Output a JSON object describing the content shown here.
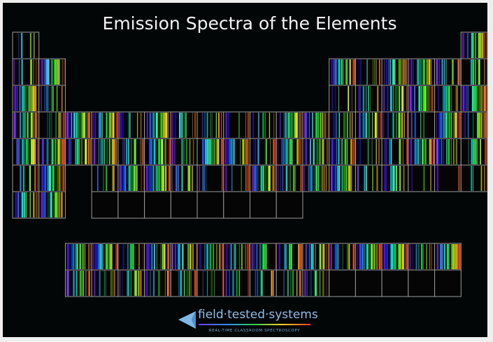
{
  "header": {
    "title": "Emission Spectra of the Elements"
  },
  "logo": {
    "name": "field·tested·systems",
    "tagline": "REAL-TIME CLASSROOM SPECTROSCOPY"
  }
}
